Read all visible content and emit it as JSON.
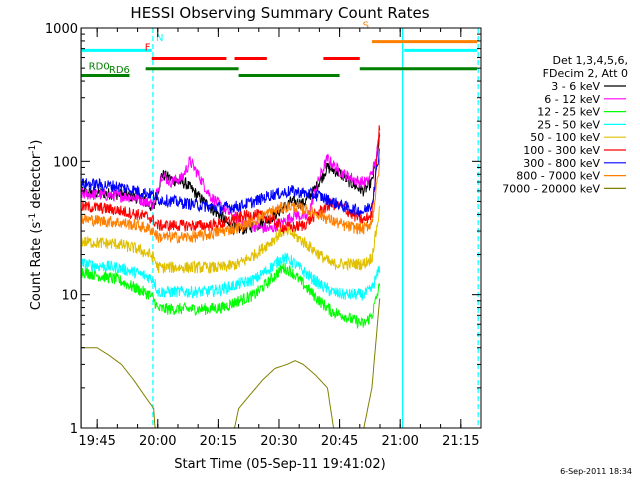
{
  "chart_data": {
    "type": "line",
    "title": "HESSI Observing Summary Count Rates",
    "xlabel": "Start Time (05-Sep-11 19:41:02)",
    "ylabel_main": "Count Rate (s",
    "ylabel_sup1": "-1",
    "ylabel_mid": " detector",
    "ylabel_sup2": "-1",
    "ylabel_end": ")",
    "yscale": "log",
    "ylim": [
      1,
      1000
    ],
    "xlim_min": [
      1181.0,
      1280.0
    ],
    "y_ticks": [
      {
        "v": 1,
        "label": "1"
      },
      {
        "v": 10,
        "label": "10"
      },
      {
        "v": 100,
        "label": "100"
      },
      {
        "v": 1000,
        "label": "1000"
      }
    ],
    "x_ticks": [
      {
        "m": 1185,
        "label": "19:45"
      },
      {
        "m": 1200,
        "label": "20:00"
      },
      {
        "m": 1215,
        "label": "20:15"
      },
      {
        "m": 1230,
        "label": "20:30"
      },
      {
        "m": 1245,
        "label": "20:45"
      },
      {
        "m": 1260,
        "label": "21:00"
      },
      {
        "m": 1275,
        "label": "21:15"
      }
    ],
    "legend_header": [
      "Det 1,3,4,5,6,",
      "FDecim 2, Att 0"
    ],
    "series": [
      {
        "name": "3 - 6 keV",
        "color": "#000000",
        "x": [
          1181,
          1185,
          1189,
          1192,
          1196,
          1199,
          1201,
          1204,
          1207,
          1210,
          1213,
          1216,
          1218,
          1221,
          1224,
          1227,
          1230,
          1233,
          1236,
          1239,
          1242,
          1245,
          1247,
          1249,
          1251,
          1253,
          1255
        ],
        "y": [
          58,
          58,
          57,
          56,
          52,
          44,
          80,
          72,
          68,
          55,
          45,
          38,
          32,
          31,
          33,
          36,
          42,
          50,
          48,
          62,
          90,
          82,
          72,
          65,
          60,
          70,
          150
        ]
      },
      {
        "name": "6 - 12 keV",
        "color": "#ff00ff",
        "x": [
          1181,
          1186,
          1190,
          1194,
          1197,
          1199,
          1201,
          1203,
          1206,
          1208,
          1210,
          1213,
          1216,
          1219,
          1222,
          1225,
          1228,
          1231,
          1234,
          1237,
          1240,
          1242,
          1244,
          1246,
          1248,
          1250,
          1252,
          1254,
          1255
        ],
        "y": [
          57,
          56,
          55,
          54,
          50,
          48,
          80,
          70,
          75,
          100,
          80,
          55,
          45,
          38,
          34,
          32,
          31,
          35,
          40,
          38,
          75,
          105,
          90,
          80,
          75,
          70,
          70,
          100,
          175
        ]
      },
      {
        "name": "12 - 25 keV",
        "color": "#00ff00",
        "x": [
          1181,
          1185,
          1190,
          1195,
          1198,
          1199.2,
          1200,
          1203,
          1207,
          1212,
          1216,
          1220,
          1224,
          1228,
          1231,
          1233,
          1236,
          1240,
          1243,
          1246,
          1248,
          1251,
          1253,
          1255
        ],
        "y": [
          15,
          14,
          13,
          11,
          10,
          9,
          7.8,
          7.8,
          7.8,
          7.8,
          8,
          9,
          10,
          13,
          16,
          15,
          12,
          9,
          7.5,
          7,
          6.5,
          6,
          7,
          12
        ]
      },
      {
        "name": "25 - 50 keV",
        "color": "#00ffff",
        "x": [
          1181,
          1185,
          1190,
          1195,
          1198,
          1199,
          1200,
          1204,
          1208,
          1212,
          1216,
          1220,
          1224,
          1228,
          1231,
          1233,
          1236,
          1240,
          1243,
          1246,
          1248,
          1251,
          1253,
          1255
        ],
        "y": [
          17,
          16.5,
          16,
          14.5,
          13.5,
          13,
          10.5,
          10.5,
          10.5,
          10.5,
          11,
          12,
          13,
          16,
          19,
          18,
          15,
          12,
          10.5,
          10,
          10,
          10,
          11,
          16
        ]
      },
      {
        "name": "50 - 100 keV",
        "color": "#e0c000",
        "x": [
          1181,
          1185,
          1190,
          1195,
          1198,
          1199,
          1200,
          1204,
          1208,
          1212,
          1216,
          1220,
          1224,
          1228,
          1231,
          1233,
          1236,
          1240,
          1243,
          1246,
          1248,
          1251,
          1253,
          1255
        ],
        "y": [
          25,
          24.5,
          24,
          22,
          20,
          19,
          16,
          16,
          16,
          16,
          16,
          17,
          20,
          25,
          30,
          29,
          25,
          20,
          17,
          17,
          17,
          17,
          19,
          45
        ]
      },
      {
        "name": "100 - 300 keV",
        "color": "#ff0000",
        "x": [
          1181,
          1185,
          1190,
          1195,
          1198,
          1199,
          1200,
          1204,
          1208,
          1212,
          1216,
          1220,
          1224,
          1228,
          1231,
          1233,
          1236,
          1240,
          1243,
          1246,
          1248,
          1251,
          1253,
          1255
        ],
        "y": [
          46,
          45,
          43,
          40,
          38,
          36,
          33,
          33,
          33,
          33,
          34,
          38,
          40,
          37,
          32,
          32,
          33,
          42,
          48,
          45,
          40,
          36,
          40,
          200
        ]
      },
      {
        "name": "300 - 800 keV",
        "color": "#0000ff",
        "x": [
          1181,
          1185,
          1190,
          1195,
          1198,
          1199,
          1200,
          1204,
          1208,
          1212,
          1216,
          1220,
          1224,
          1228,
          1231,
          1233,
          1236,
          1240,
          1243,
          1246,
          1248,
          1251,
          1253,
          1255
        ],
        "y": [
          68,
          67,
          65,
          60,
          57,
          56,
          52,
          50,
          48,
          46,
          45,
          46,
          50,
          56,
          58,
          60,
          58,
          55,
          50,
          46,
          44,
          42,
          48,
          130
        ]
      },
      {
        "name": "800 - 7000 keV",
        "color": "#ff8000",
        "x": [
          1181,
          1185,
          1190,
          1195,
          1198,
          1199,
          1200,
          1204,
          1208,
          1212,
          1216,
          1220,
          1224,
          1228,
          1231,
          1233,
          1236,
          1240,
          1243,
          1246,
          1248,
          1251,
          1253,
          1255
        ],
        "y": [
          37,
          36,
          35,
          33,
          31,
          30,
          27,
          27,
          27,
          28,
          30,
          32,
          36,
          42,
          45,
          46,
          44,
          40,
          36,
          33,
          32,
          31,
          35,
          100
        ]
      },
      {
        "name": "7000 - 20000 keV",
        "color": "#808000",
        "x": [
          1181,
          1185,
          1188,
          1191,
          1194,
          1197,
          1199,
          1199.3,
          1200,
          1205,
          1210,
          1215,
          1219,
          1220,
          1223,
          1226,
          1229,
          1232,
          1234,
          1236,
          1239,
          1242,
          1243.5,
          1247,
          1249,
          1250,
          1251,
          1253,
          1255
        ],
        "y": [
          4,
          4,
          3.5,
          3,
          2.3,
          1.7,
          1.4,
          1,
          1,
          1,
          1,
          1,
          1,
          1.4,
          1.8,
          2.3,
          2.8,
          3,
          3.2,
          3,
          2.5,
          2,
          1,
          1,
          1,
          1,
          1,
          2,
          10
        ]
      }
    ],
    "flags_right": [
      {
        "label": "N",
        "color": "#00ffff",
        "label_y": 800
      },
      {
        "label": "S",
        "color": "#ff8000",
        "label_y": 990
      }
    ],
    "flags_left": [
      {
        "label": "F",
        "color": "#ff0000",
        "label_y": 680
      },
      {
        "label": "RD0",
        "color": "#008000",
        "label_y": 490
      },
      {
        "label": "RD6",
        "color": "#008000",
        "label_y": 460
      }
    ],
    "flag_segments": [
      {
        "color": "#00ffff",
        "y": 680,
        "x": [
          [
            1181,
            1198.5
          ],
          [
            1261,
            1279
          ]
        ]
      },
      {
        "color": "#ff8000",
        "y": 790,
        "x": [
          [
            1253,
            1279
          ]
        ]
      },
      {
        "color": "#ff0000",
        "y": 590,
        "x": [
          [
            1198.5,
            1217
          ],
          [
            1219,
            1227
          ],
          [
            1241,
            1250
          ]
        ]
      },
      {
        "color": "#008000",
        "y": 495,
        "x": [
          [
            1197,
            1220
          ],
          [
            1250,
            1279
          ]
        ]
      },
      {
        "color": "#008000",
        "y": 440,
        "x": [
          [
            1181,
            1193
          ],
          [
            1220,
            1245
          ]
        ]
      }
    ],
    "vlines": [
      {
        "m": 1181.1,
        "color": "#00ffff",
        "style": "solid"
      },
      {
        "m": 1198.8,
        "color": "#00ffff",
        "style": "dashed"
      },
      {
        "m": 1260.6,
        "color": "#00ffff",
        "style": "solid"
      },
      {
        "m": 1279.3,
        "color": "#00ffff",
        "style": "dashed"
      }
    ],
    "timestamp": "6-Sep-2011 18:34"
  }
}
